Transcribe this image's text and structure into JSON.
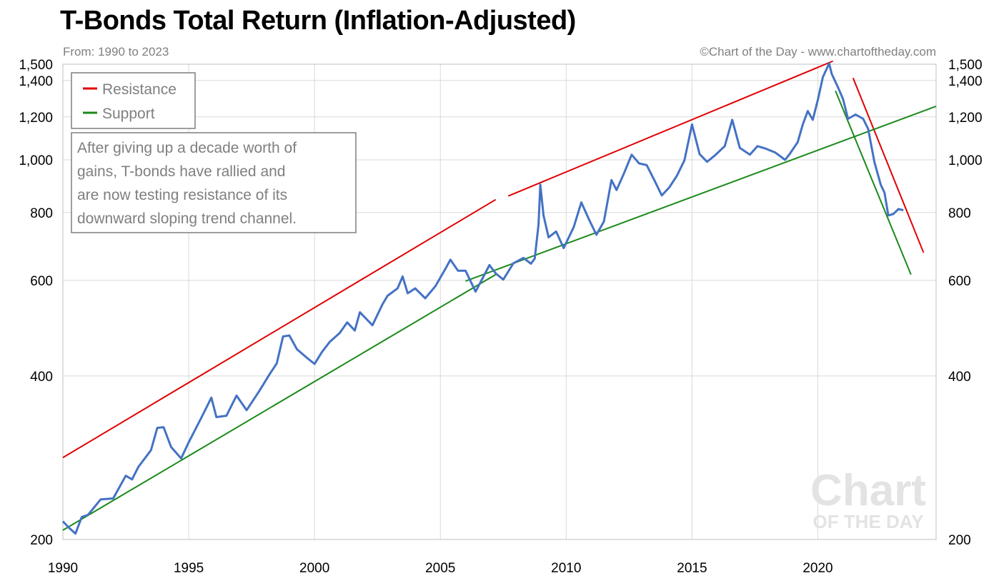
{
  "title": "T-Bonds Total Return (Inflation-Adjusted)",
  "subtitle": "From: 1990 to 2023",
  "credit": "©Chart of the Day - www.chartoftheday.com",
  "watermark": {
    "line1": "Chart",
    "line2": "OF THE DAY"
  },
  "annotation": {
    "lines": [
      "After giving up a decade worth of",
      "gains, T-bonds have rallied and",
      "are now testing resistance of its",
      "downward sloping trend channel."
    ]
  },
  "colors": {
    "series": "#4472c4",
    "resistance": "#e00000",
    "support": "#1a8a1a",
    "grid": "#d9d9d9"
  },
  "chart_data": {
    "type": "line",
    "title": "T-Bonds Total Return (Inflation-Adjusted)",
    "yscale": "log",
    "xlim": [
      1990,
      2024.7
    ],
    "ylim": [
      200,
      1500
    ],
    "x_ticks": [
      1990,
      1995,
      2000,
      2005,
      2010,
      2015,
      2020
    ],
    "x_tick_labels": [
      "1990",
      "1995",
      "2000",
      "2005",
      "2010",
      "2015",
      "2020"
    ],
    "y_ticks": [
      200,
      400,
      600,
      800,
      1000,
      1200,
      1400,
      1500
    ],
    "y_tick_labels": [
      "200",
      "400",
      "600",
      "800",
      "1,000",
      "1,200",
      "1,400",
      "1,500"
    ],
    "legend": [
      {
        "label": "Resistance",
        "color": "#e00000"
      },
      {
        "label": "Support",
        "color": "#1a8a1a"
      }
    ],
    "series": [
      {
        "name": "T-Bonds Total Return",
        "points": [
          [
            1990.0,
            216
          ],
          [
            1990.25,
            210
          ],
          [
            1990.5,
            205
          ],
          [
            1990.75,
            220
          ],
          [
            1991.0,
            222
          ],
          [
            1991.5,
            237
          ],
          [
            1992.0,
            238
          ],
          [
            1992.5,
            262
          ],
          [
            1992.75,
            258
          ],
          [
            1993.0,
            272
          ],
          [
            1993.5,
            292
          ],
          [
            1993.75,
            321
          ],
          [
            1994.0,
            322
          ],
          [
            1994.3,
            296
          ],
          [
            1994.7,
            282
          ],
          [
            1995.0,
            302
          ],
          [
            1995.5,
            335
          ],
          [
            1995.9,
            365
          ],
          [
            1996.1,
            336
          ],
          [
            1996.5,
            338
          ],
          [
            1996.9,
            368
          ],
          [
            1997.3,
            346
          ],
          [
            1997.8,
            375
          ],
          [
            1998.2,
            402
          ],
          [
            1998.5,
            422
          ],
          [
            1998.75,
            473
          ],
          [
            1999.0,
            475
          ],
          [
            1999.3,
            448
          ],
          [
            1999.7,
            432
          ],
          [
            2000.0,
            421
          ],
          [
            2000.3,
            443
          ],
          [
            2000.6,
            462
          ],
          [
            2001.0,
            480
          ],
          [
            2001.3,
            502
          ],
          [
            2001.6,
            485
          ],
          [
            2001.8,
            524
          ],
          [
            2002.3,
            496
          ],
          [
            2002.7,
            542
          ],
          [
            2002.9,
            562
          ],
          [
            2003.3,
            580
          ],
          [
            2003.5,
            610
          ],
          [
            2003.7,
            568
          ],
          [
            2004.0,
            580
          ],
          [
            2004.4,
            556
          ],
          [
            2004.8,
            585
          ],
          [
            2005.2,
            630
          ],
          [
            2005.4,
            655
          ],
          [
            2005.7,
            625
          ],
          [
            2006.0,
            625
          ],
          [
            2006.4,
            572
          ],
          [
            2006.7,
            608
          ],
          [
            2006.95,
            640
          ],
          [
            2007.2,
            618
          ],
          [
            2007.5,
            602
          ],
          [
            2007.9,
            645
          ],
          [
            2008.3,
            660
          ],
          [
            2008.6,
            644
          ],
          [
            2008.75,
            658
          ],
          [
            2008.9,
            760
          ],
          [
            2008.97,
            900
          ],
          [
            2009.1,
            790
          ],
          [
            2009.3,
            720
          ],
          [
            2009.6,
            738
          ],
          [
            2009.9,
            688
          ],
          [
            2010.3,
            752
          ],
          [
            2010.6,
            835
          ],
          [
            2010.9,
            778
          ],
          [
            2011.2,
            728
          ],
          [
            2011.5,
            770
          ],
          [
            2011.8,
            918
          ],
          [
            2012.0,
            880
          ],
          [
            2012.3,
            945
          ],
          [
            2012.6,
            1022
          ],
          [
            2012.9,
            985
          ],
          [
            2013.2,
            978
          ],
          [
            2013.5,
            918
          ],
          [
            2013.8,
            860
          ],
          [
            2014.1,
            890
          ],
          [
            2014.4,
            935
          ],
          [
            2014.7,
            998
          ],
          [
            2015.0,
            1162
          ],
          [
            2015.3,
            1025
          ],
          [
            2015.6,
            992
          ],
          [
            2015.9,
            1018
          ],
          [
            2016.3,
            1060
          ],
          [
            2016.6,
            1185
          ],
          [
            2016.9,
            1052
          ],
          [
            2017.3,
            1022
          ],
          [
            2017.6,
            1060
          ],
          [
            2017.9,
            1050
          ],
          [
            2018.3,
            1032
          ],
          [
            2018.7,
            1000
          ],
          [
            2018.9,
            1028
          ],
          [
            2019.2,
            1078
          ],
          [
            2019.4,
            1162
          ],
          [
            2019.6,
            1230
          ],
          [
            2019.8,
            1185
          ],
          [
            2020.0,
            1290
          ],
          [
            2020.2,
            1420
          ],
          [
            2020.45,
            1505
          ],
          [
            2020.55,
            1440
          ],
          [
            2020.8,
            1360
          ],
          [
            2021.0,
            1295
          ],
          [
            2021.2,
            1190
          ],
          [
            2021.5,
            1212
          ],
          [
            2021.8,
            1190
          ],
          [
            2022.0,
            1140
          ],
          [
            2022.25,
            990
          ],
          [
            2022.5,
            900
          ],
          [
            2022.65,
            870
          ],
          [
            2022.8,
            790
          ],
          [
            2023.0,
            795
          ],
          [
            2023.2,
            812
          ],
          [
            2023.4,
            808
          ]
        ]
      },
      {
        "name": "Resistance",
        "color": "#e00000",
        "segments": [
          [
            [
              1990.0,
              283
            ],
            [
              2007.2,
              845
            ]
          ],
          [
            [
              2007.7,
              858
            ],
            [
              2020.6,
              1520
            ]
          ],
          [
            [
              2021.4,
              1415
            ],
            [
              2024.2,
              675
            ]
          ]
        ]
      },
      {
        "name": "Support",
        "color": "#1a8a1a",
        "segments": [
          [
            [
              1990.0,
              208
            ],
            [
              2007.2,
              615
            ]
          ],
          [
            [
              2006.0,
              598
            ],
            [
              2024.7,
              1255
            ]
          ],
          [
            [
              2020.7,
              1340
            ],
            [
              2023.7,
              615
            ]
          ]
        ]
      }
    ]
  }
}
